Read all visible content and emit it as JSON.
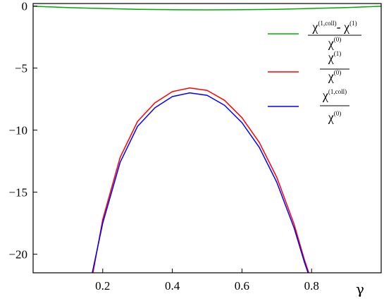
{
  "chart_data": {
    "type": "line",
    "xlabel": "γ",
    "ylabel": "",
    "xlim": [
      0.0,
      1.0
    ],
    "ylim": [
      -21.5,
      0.2
    ],
    "x_ticks": [
      "0.2",
      "0.4",
      "0.6",
      "0.8"
    ],
    "y_ticks": [
      "0",
      "−5",
      "−10",
      "−15",
      "−20"
    ],
    "x_tick_values": [
      0.2,
      0.4,
      0.6,
      0.8
    ],
    "y_tick_values": [
      0,
      -5,
      -10,
      -15,
      -20
    ],
    "legend_position": "top-right",
    "series": [
      {
        "name": "(χ^(1,coll) − χ^(1)) / χ^(0)",
        "color": "#00aa00",
        "x": [
          0.0,
          0.1,
          0.2,
          0.3,
          0.4,
          0.5,
          0.6,
          0.7,
          0.8,
          0.9,
          1.0
        ],
        "y": [
          -0.02,
          -0.13,
          -0.2,
          -0.27,
          -0.3,
          -0.31,
          -0.3,
          -0.27,
          -0.2,
          -0.13,
          -0.02
        ]
      },
      {
        "name": "χ^(1) / χ^(0)",
        "color": "#ff0000",
        "x": [
          0.172,
          0.2,
          0.25,
          0.3,
          0.35,
          0.4,
          0.45,
          0.5,
          0.55,
          0.6,
          0.65,
          0.7,
          0.75,
          0.78,
          0.792
        ],
        "y": [
          -21.5,
          -17.2,
          -12.2,
          -9.3,
          -7.8,
          -6.9,
          -6.6,
          -6.8,
          -7.6,
          -9.0,
          -11.0,
          -13.8,
          -17.6,
          -20.5,
          -21.5
        ]
      },
      {
        "name": "χ^(1,coll) / χ^(0)",
        "color": "#0000ff",
        "x": [
          0.17,
          0.2,
          0.25,
          0.3,
          0.35,
          0.4,
          0.45,
          0.5,
          0.55,
          0.6,
          0.65,
          0.7,
          0.75,
          0.78,
          0.79
        ],
        "y": [
          -21.5,
          -17.5,
          -12.6,
          -9.7,
          -8.2,
          -7.3,
          -7.0,
          -7.2,
          -8.0,
          -9.4,
          -11.4,
          -14.2,
          -17.9,
          -20.7,
          -21.5
        ]
      }
    ]
  },
  "legend_items": [
    {
      "id": "diff",
      "color": "#00aa00",
      "num_base": "χ",
      "num_sup": "(1,coll)",
      "num_mid": "- χ",
      "num_sup2": "(1)",
      "den_base": "χ",
      "den_sup": "(0)"
    },
    {
      "id": "chi1",
      "color": "#ff0000",
      "num_base": "χ",
      "num_sup": "(1)",
      "num_mid": "",
      "num_sup2": "",
      "den_base": "χ",
      "den_sup": "(0)"
    },
    {
      "id": "coll",
      "color": "#0000ff",
      "num_base": "χ",
      "num_sup": "(1,coll)",
      "num_mid": "",
      "num_sup2": "",
      "den_base": "χ",
      "den_sup": "(0)"
    }
  ]
}
